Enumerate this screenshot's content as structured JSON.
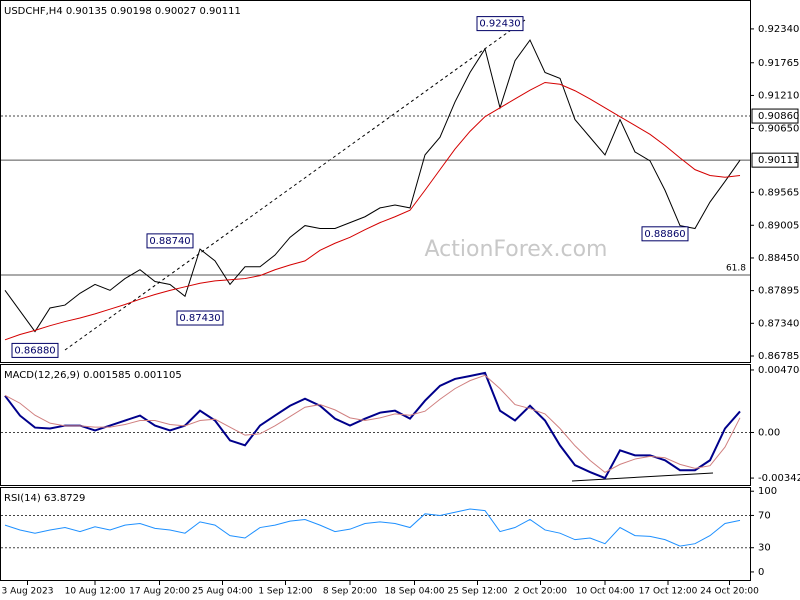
{
  "chart_data": [
    {
      "type": "line",
      "title": "USDCHF,H4 0.90135 0.90198 0.90027 0.90111",
      "watermark": "ActionForex.com",
      "xlim": [
        0,
        49
      ],
      "ylim": [
        0.86683,
        0.92814
      ],
      "yticks": [
        {
          "value": 0.9234,
          "label": "0.92340"
        },
        {
          "value": 0.91765,
          "label": "0.91765"
        },
        {
          "value": 0.9121,
          "label": "0.91210"
        },
        {
          "value": 0.9065,
          "label": "0.90650"
        },
        {
          "value": 0.89565,
          "label": "0.89565"
        },
        {
          "value": 0.89005,
          "label": "0.89005"
        },
        {
          "value": 0.8845,
          "label": "0.88450"
        },
        {
          "value": 0.87895,
          "label": "0.87895"
        },
        {
          "value": 0.8734,
          "label": "0.87340"
        },
        {
          "value": 0.86785,
          "label": "0.86785"
        }
      ],
      "series": [
        {
          "color": "#000000",
          "values": [
            0.879,
            0.8755,
            0.872,
            0.876,
            0.8765,
            0.8785,
            0.88,
            0.879,
            0.881,
            0.8825,
            0.8805,
            0.88,
            0.878,
            0.886,
            0.884,
            0.88,
            0.883,
            0.883,
            0.885,
            0.888,
            0.89,
            0.8895,
            0.8895,
            0.8905,
            0.8915,
            0.893,
            0.8935,
            0.893,
            0.902,
            0.905,
            0.911,
            0.916,
            0.92,
            0.91,
            0.918,
            0.9215,
            0.916,
            0.915,
            0.908,
            0.905,
            0.902,
            0.908,
            0.9025,
            0.901,
            0.896,
            0.89,
            0.8895,
            0.894,
            0.8975,
            0.90111
          ]
        },
        {
          "color": "#d40000",
          "values": [
            0.8706,
            0.8715,
            0.8722,
            0.873,
            0.8737,
            0.8743,
            0.875,
            0.8758,
            0.8766,
            0.8775,
            0.8783,
            0.879,
            0.8796,
            0.8802,
            0.8806,
            0.8808,
            0.881,
            0.8815,
            0.8825,
            0.8833,
            0.884,
            0.8858,
            0.887,
            0.888,
            0.8893,
            0.8905,
            0.8915,
            0.8926,
            0.896,
            0.8995,
            0.903,
            0.906,
            0.9085,
            0.91,
            0.9115,
            0.913,
            0.9143,
            0.914,
            0.9129,
            0.9115,
            0.91,
            0.9085,
            0.907,
            0.9055,
            0.9036,
            0.9015,
            0.8995,
            0.8985,
            0.8982,
            0.8985
          ]
        }
      ],
      "levels": [
        {
          "value": 0.9086,
          "label": "0.90860",
          "style": "dashed"
        },
        {
          "value": 0.90111,
          "label": "0.90111",
          "style": "solid"
        },
        {
          "value": 0.8816,
          "label": "61.8",
          "style": "solid"
        }
      ],
      "annotations": [
        {
          "value": 0.9243,
          "label": "0.92430",
          "index": 33
        },
        {
          "value": 0.8874,
          "label": "0.88740",
          "index": 11
        },
        {
          "value": 0.8743,
          "label": "0.87430",
          "index": 13
        },
        {
          "value": 0.8688,
          "label": "0.86880",
          "index": 2
        },
        {
          "value": 0.8886,
          "label": "0.88860",
          "index": 44
        }
      ],
      "xticks": [
        {
          "value": 1.5,
          "label": "3 Aug 2023"
        },
        {
          "value": 6,
          "label": "10 Aug 12:00"
        },
        {
          "value": 10.3,
          "label": "17 Aug 20:00"
        },
        {
          "value": 14.5,
          "label": "25 Aug 04:00"
        },
        {
          "value": 18.7,
          "label": "1 Sep 12:00"
        },
        {
          "value": 23,
          "label": "8 Sep 20:00"
        },
        {
          "value": 27.3,
          "label": "18 Sep 04:00"
        },
        {
          "value": 31.5,
          "label": "25 Sep 12:00"
        },
        {
          "value": 35.7,
          "label": "2 Oct 20:00"
        },
        {
          "value": 40,
          "label": "10 Oct 04:00"
        },
        {
          "value": 44.2,
          "label": "17 Oct 12:00"
        },
        {
          "value": 48.3,
          "label": "24 Oct 20:00"
        }
      ]
    },
    {
      "type": "line",
      "title": "MACD(12,26,9) 0.001585 0.001105",
      "xlim": [
        0,
        49
      ],
      "ylim": [
        -0.003951,
        0.005077
      ],
      "yticks": [
        0.004704,
        {
          "value": 0,
          "label": "0.00"
        },
        -0.003429
      ],
      "levels": [
        0
      ],
      "series": [
        {
          "color": "#00008b",
          "width": 2,
          "values": [
            0.00276,
            0.00127,
            0.00037,
            0.0003,
            0.00052,
            0.00052,
            0.00015,
            0.00052,
            0.0009,
            0.00127,
            0.00052,
            0.00015,
            0.00052,
            0.00164,
            0.0009,
            -0.0006,
            -0.00097,
            0.00052,
            0.00127,
            0.00201,
            0.00254,
            0.00201,
            0.00104,
            0.00052,
            0.00104,
            0.00149,
            0.00164,
            0.00104,
            0.00239,
            0.00351,
            0.00403,
            0.00425,
            0.00448,
            0.00164,
            0.0009,
            0.00201,
            0.0009,
            -0.00097,
            -0.00246,
            -0.00298,
            -0.00343,
            -0.00134,
            -0.00172,
            -0.00172,
            -0.00209,
            -0.00284,
            -0.00284,
            -0.00209,
            0.0003,
            0.001585
          ]
        },
        {
          "color": "#d08080",
          "width": 1,
          "values": [
            0.0028,
            0.0022,
            0.0013,
            0.0007,
            0.0005,
            0.0005,
            0.0004,
            0.0004,
            0.0006,
            0.0009,
            0.0009,
            0.0006,
            0.0005,
            0.0009,
            0.001,
            0.0004,
            -0.0002,
            -0.0001,
            0.0005,
            0.0012,
            0.0019,
            0.0021,
            0.0017,
            0.0011,
            0.0009,
            0.0011,
            0.0014,
            0.0013,
            0.0016,
            0.0025,
            0.0033,
            0.0039,
            0.0043,
            0.0033,
            0.0021,
            0.0018,
            0.0014,
            0.0003,
            -0.001,
            -0.0021,
            -0.003,
            -0.0024,
            -0.002,
            -0.0018,
            -0.0019,
            -0.0024,
            -0.0027,
            -0.0025,
            -0.0011,
            0.001105
          ]
        }
      ]
    },
    {
      "type": "line",
      "title": "RSI(14) 63.8729",
      "xlim": [
        0,
        49
      ],
      "ylim": [
        -10,
        104
      ],
      "yticks": [
        100,
        70,
        30,
        0
      ],
      "levels": [
        70,
        30
      ],
      "series": [
        {
          "color": "#1e90ff",
          "width": 1,
          "values": [
            58,
            52,
            48,
            52,
            55,
            50,
            56,
            52,
            58,
            60,
            54,
            52,
            48,
            62,
            58,
            45,
            42,
            55,
            58,
            63,
            65,
            58,
            50,
            53,
            60,
            62,
            60,
            55,
            72,
            70,
            74,
            78,
            76,
            50,
            55,
            65,
            52,
            48,
            40,
            42,
            35,
            55,
            45,
            44,
            40,
            32,
            35,
            45,
            60,
            63.8729
          ]
        }
      ]
    }
  ]
}
